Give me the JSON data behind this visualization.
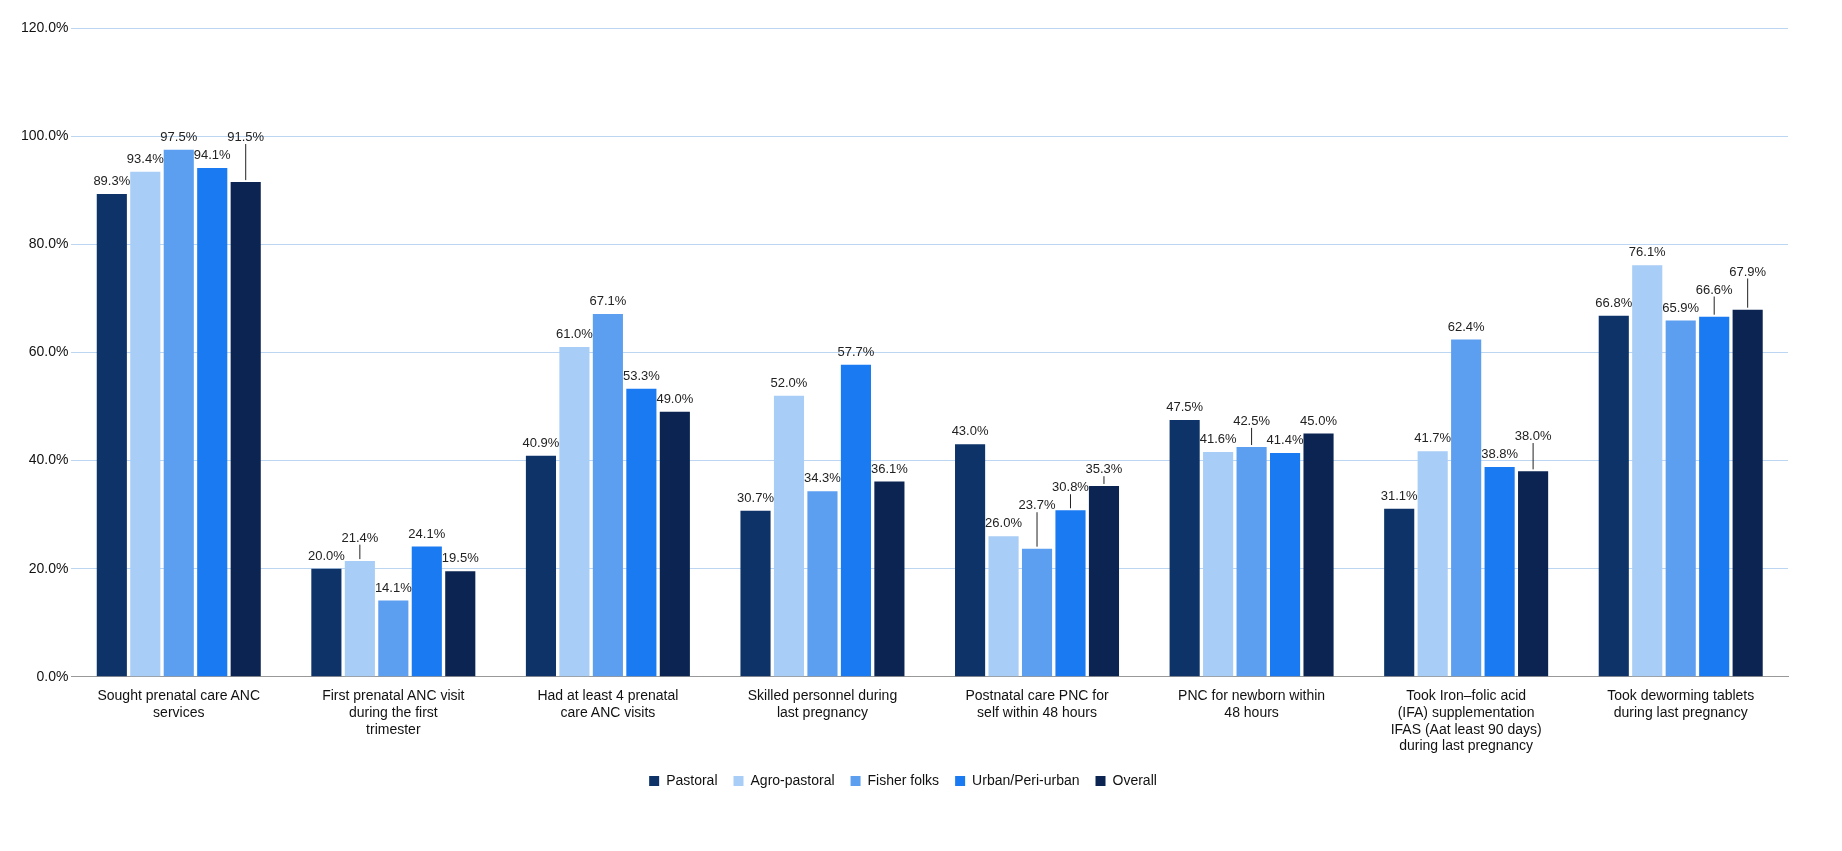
{
  "chart_data": {
    "type": "bar",
    "categories": [
      "Sought prenatal care ANC services",
      "First prenatal ANC visit during the first trimester",
      "Had at least 4 prenatal care ANC visits",
      "Skilled personnel during last pregnancy",
      "Postnatal care PNC for self within 48 hours",
      "PNC for newborn within 48 hours",
      "Took Iron–folic acid (IFA) supplementation IFAS (Aat least 90 days) during last pregnancy",
      "Took deworming tablets during last pregnancy"
    ],
    "series": [
      {
        "name": "Pastoral",
        "color": "#0d3369",
        "values": [
          89.3,
          20.0,
          40.9,
          30.7,
          43.0,
          47.5,
          31.1,
          66.8
        ],
        "value_labels": [
          "89.3%",
          "20.0%",
          "40.9%",
          "30.7%",
          "43.0%",
          "47.5%",
          "31.1%",
          "66.8%"
        ]
      },
      {
        "name": "Agro-pastoral",
        "color": "#a8cdf6",
        "values": [
          93.4,
          21.4,
          61.0,
          52.0,
          26.0,
          41.6,
          41.7,
          76.1
        ],
        "value_labels": [
          "93.4%",
          "21.4%",
          "61.0%",
          "52.0%",
          "26.0%",
          "41.6%",
          "41.7%",
          "76.1%"
        ]
      },
      {
        "name": "Fisher folks",
        "color": "#5c9ff0",
        "values": [
          97.5,
          14.1,
          67.1,
          34.3,
          23.7,
          42.5,
          62.4,
          65.9
        ],
        "value_labels": [
          "97.5%",
          "14.1%",
          "67.1%",
          "34.3%",
          "23.7%",
          "42.5%",
          "62.4%",
          "65.9%"
        ]
      },
      {
        "name": "Urban/Peri-urban",
        "color": "#1a7af2",
        "values": [
          94.1,
          24.1,
          53.3,
          57.7,
          30.8,
          41.4,
          38.8,
          66.6
        ],
        "value_labels": [
          "94.1%",
          "24.1%",
          "53.3%",
          "57.7%",
          "30.8%",
          "41.4%",
          "38.8%",
          "66.6%"
        ]
      },
      {
        "name": "Overall",
        "color": "#0b2452",
        "values": [
          91.5,
          19.5,
          49.0,
          36.1,
          35.3,
          45.0,
          38.0,
          67.9
        ],
        "value_labels": [
          "91.5%",
          "19.5%",
          "49.0%",
          "36.1%",
          "35.3%",
          "45.0%",
          "38.0%",
          "67.9%"
        ]
      }
    ],
    "ylim": [
      0,
      120
    ],
    "yticks": [
      {
        "value": 0,
        "label": "0.0%"
      },
      {
        "value": 20,
        "label": "20.0%"
      },
      {
        "value": 40,
        "label": "40.0%"
      },
      {
        "value": 60,
        "label": "60.0%"
      },
      {
        "value": 80,
        "label": "80.0%"
      },
      {
        "value": 100,
        "label": "100.0%"
      },
      {
        "value": 120,
        "label": "120.0%"
      }
    ],
    "grid": "y",
    "legend": "bottom"
  }
}
